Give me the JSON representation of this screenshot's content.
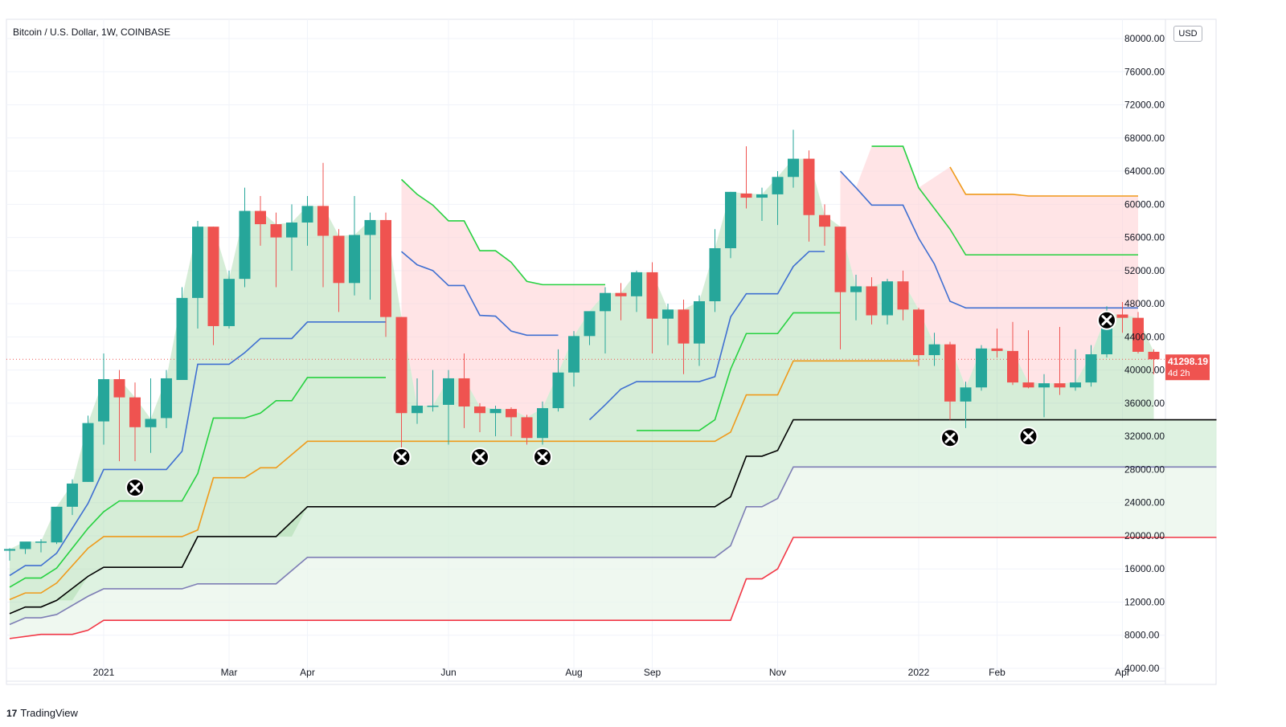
{
  "header": {
    "symbol_title": "Bitcoin / U.S. Dollar, 1W, COINBASE",
    "currency_badge": "USD"
  },
  "footer": {
    "brand": "TradingView",
    "brand_mark": "17"
  },
  "price_label": {
    "value": "41298.19",
    "countdown": "4d 2h"
  },
  "chart_data": {
    "type": "candlestick",
    "title": "Bitcoin / U.S. Dollar, 1W, COINBASE",
    "xlabel": "",
    "ylabel": "",
    "ylim": [
      4000,
      80000
    ],
    "y_ticks": [
      "80000.00",
      "76000.00",
      "72000.00",
      "68000.00",
      "64000.00",
      "60000.00",
      "56000.00",
      "52000.00",
      "48000.00",
      "44000.00",
      "40000.00",
      "36000.00",
      "32000.00",
      "28000.00",
      "24000.00",
      "20000.00",
      "16000.00",
      "12000.00",
      "8000.00",
      "4000.00"
    ],
    "x_ticks": [
      {
        "label": "2021",
        "index": 6
      },
      {
        "label": "Mar",
        "index": 14
      },
      {
        "label": "Apr",
        "index": 19
      },
      {
        "label": "Jun",
        "index": 28
      },
      {
        "label": "Aug",
        "index": 36
      },
      {
        "label": "Sep",
        "index": 41
      },
      {
        "label": "Nov",
        "index": 49
      },
      {
        "label": "2022",
        "index": 58
      },
      {
        "label": "Feb",
        "index": 63
      },
      {
        "label": "Apr",
        "index": 71
      }
    ],
    "current_price": 41298.19,
    "candles": [
      [
        18200,
        18500,
        17000,
        18400
      ],
      [
        18400,
        19000,
        17800,
        19300
      ],
      [
        19200,
        19600,
        18000,
        19300
      ],
      [
        19200,
        23500,
        19000,
        23500
      ],
      [
        23500,
        26800,
        22500,
        26300
      ],
      [
        26500,
        34500,
        26500,
        33600
      ],
      [
        33800,
        42000,
        31000,
        38900
      ],
      [
        38900,
        40000,
        29000,
        36700
      ],
      [
        36700,
        38500,
        29000,
        33100
      ],
      [
        33100,
        39000,
        30000,
        34100
      ],
      [
        34200,
        40000,
        33000,
        39000
      ],
      [
        38800,
        50000,
        39000,
        48700
      ],
      [
        48700,
        58000,
        45000,
        57300
      ],
      [
        57300,
        57300,
        43000,
        45300
      ],
      [
        45300,
        52000,
        45000,
        51000
      ],
      [
        51000,
        62000,
        50000,
        59200
      ],
      [
        59200,
        61000,
        55000,
        57600
      ],
      [
        57600,
        59000,
        50000,
        56000
      ],
      [
        56000,
        60000,
        52000,
        57800
      ],
      [
        57800,
        61000,
        55000,
        59800
      ],
      [
        59800,
        65000,
        50000,
        56200
      ],
      [
        56200,
        57000,
        47000,
        50500
      ],
      [
        50500,
        61000,
        49000,
        56300
      ],
      [
        56300,
        59000,
        48500,
        58100
      ],
      [
        58100,
        59000,
        44000,
        46400
      ],
      [
        46400,
        46400,
        30000,
        34800
      ],
      [
        34800,
        39000,
        33500,
        35700
      ],
      [
        35700,
        40000,
        35000,
        35700
      ],
      [
        35800,
        40000,
        31000,
        39000
      ],
      [
        39000,
        42000,
        33000,
        35600
      ],
      [
        35600,
        36000,
        32500,
        34800
      ],
      [
        34800,
        35700,
        32000,
        35300
      ],
      [
        35300,
        35500,
        32000,
        34300
      ],
      [
        34300,
        34600,
        31000,
        31800
      ],
      [
        31800,
        36200,
        31000,
        35400
      ],
      [
        35400,
        42500,
        35000,
        39700
      ],
      [
        39700,
        44700,
        38000,
        44100
      ],
      [
        44100,
        46600,
        43000,
        47100
      ],
      [
        47100,
        50000,
        42000,
        49300
      ],
      [
        49300,
        50500,
        46000,
        48900
      ],
      [
        48900,
        52000,
        47000,
        51800
      ],
      [
        51800,
        53000,
        42000,
        46200
      ],
      [
        46200,
        48000,
        43000,
        47300
      ],
      [
        47300,
        48500,
        39500,
        43200
      ],
      [
        43200,
        49000,
        40500,
        48300
      ],
      [
        48300,
        57000,
        47000,
        54700
      ],
      [
        54700,
        61500,
        53500,
        61500
      ],
      [
        61300,
        67000,
        59500,
        60800
      ],
      [
        60800,
        62000,
        58000,
        61200
      ],
      [
        61200,
        64000,
        57500,
        63300
      ],
      [
        63300,
        69000,
        62000,
        65500
      ],
      [
        65500,
        66500,
        55500,
        58700
      ],
      [
        58700,
        60000,
        55000,
        57300
      ],
      [
        57300,
        57300,
        42500,
        49400
      ],
      [
        49400,
        51500,
        46000,
        50100
      ],
      [
        50100,
        51200,
        45500,
        46600
      ],
      [
        46600,
        51000,
        45500,
        50700
      ],
      [
        50700,
        52000,
        46000,
        47300
      ],
      [
        47300,
        47500,
        40500,
        41800
      ],
      [
        41800,
        44500,
        40500,
        43100
      ],
      [
        43100,
        43400,
        34000,
        36200
      ],
      [
        36200,
        38600,
        33000,
        37900
      ],
      [
        37900,
        43000,
        37500,
        42600
      ],
      [
        42600,
        45000,
        41500,
        42300
      ],
      [
        42300,
        45800,
        38200,
        38500
      ],
      [
        38500,
        44800,
        37800,
        37900
      ],
      [
        37900,
        39500,
        34300,
        38400
      ],
      [
        38400,
        45200,
        37000,
        37900
      ],
      [
        37900,
        42500,
        37500,
        38500
      ],
      [
        38500,
        43000,
        38000,
        41900
      ],
      [
        41900,
        47700,
        41500,
        46700
      ],
      [
        46700,
        48200,
        44500,
        46300
      ],
      [
        46300,
        47000,
        42000,
        42200
      ],
      [
        42200,
        42500,
        39500,
        41300
      ]
    ],
    "series": [
      {
        "style": "red",
        "points": [
          [
            0,
            7600
          ],
          [
            2,
            8100
          ],
          [
            4,
            8100
          ],
          [
            5,
            8600
          ],
          [
            6,
            9800
          ],
          [
            39,
            9800
          ],
          [
            46,
            9800
          ],
          [
            47,
            14800
          ],
          [
            48,
            14800
          ],
          [
            49,
            16000
          ],
          [
            50,
            19800
          ],
          [
            77,
            19800
          ]
        ]
      },
      {
        "style": "purple",
        "points": [
          [
            0,
            9300
          ],
          [
            1,
            10100
          ],
          [
            2,
            10100
          ],
          [
            3,
            10500
          ],
          [
            5,
            12700
          ],
          [
            6,
            13600
          ],
          [
            11,
            13600
          ],
          [
            12,
            14200
          ],
          [
            17,
            14200
          ],
          [
            19,
            17400
          ],
          [
            45,
            17400
          ],
          [
            46,
            18800
          ],
          [
            47,
            23500
          ],
          [
            48,
            23500
          ],
          [
            49,
            24500
          ],
          [
            50,
            28300
          ],
          [
            77,
            28300
          ]
        ]
      },
      {
        "style": "black",
        "points": [
          [
            0,
            10600
          ],
          [
            1,
            11400
          ],
          [
            2,
            11400
          ],
          [
            3,
            12200
          ],
          [
            5,
            15100
          ],
          [
            6,
            16200
          ],
          [
            11,
            16200
          ],
          [
            12,
            19900
          ],
          [
            17,
            19900
          ],
          [
            19,
            23500
          ],
          [
            45,
            23500
          ],
          [
            46,
            24700
          ],
          [
            47,
            29600
          ],
          [
            48,
            29600
          ],
          [
            49,
            30300
          ],
          [
            50,
            34000
          ],
          [
            77,
            34000
          ]
        ]
      },
      {
        "style": "orange",
        "points": [
          [
            0,
            12300
          ],
          [
            1,
            13100
          ],
          [
            2,
            13100
          ],
          [
            3,
            14300
          ],
          [
            5,
            18500
          ],
          [
            6,
            19900
          ],
          [
            11,
            19900
          ],
          [
            12,
            20700
          ],
          [
            13,
            27000
          ],
          [
            15,
            27000
          ],
          [
            16,
            28200
          ],
          [
            17,
            28200
          ],
          [
            18,
            29800
          ],
          [
            19,
            31400
          ],
          [
            45,
            31400
          ],
          [
            46,
            32500
          ],
          [
            47,
            37000
          ],
          [
            49,
            37000
          ],
          [
            50,
            41100
          ],
          [
            58,
            41100
          ]
        ]
      },
      {
        "style": "orange",
        "points": [
          [
            60,
            64500
          ],
          [
            61,
            61200
          ],
          [
            64,
            61200
          ],
          [
            65,
            61000
          ],
          [
            72,
            61000
          ]
        ]
      },
      {
        "style": "green",
        "points": [
          [
            0,
            13800
          ],
          [
            1,
            14900
          ],
          [
            2,
            14900
          ],
          [
            3,
            16100
          ],
          [
            5,
            20900
          ],
          [
            6,
            22900
          ],
          [
            7,
            24200
          ],
          [
            11,
            24200
          ],
          [
            12,
            27500
          ],
          [
            13,
            34200
          ],
          [
            15,
            34200
          ],
          [
            16,
            34800
          ],
          [
            17,
            36300
          ],
          [
            18,
            36300
          ],
          [
            19,
            39100
          ],
          [
            24,
            39100
          ]
        ]
      },
      {
        "style": "green",
        "points": [
          [
            25,
            63000
          ],
          [
            26,
            61200
          ],
          [
            27,
            59900
          ],
          [
            28,
            58000
          ],
          [
            29,
            58000
          ],
          [
            30,
            54400
          ],
          [
            31,
            54400
          ],
          [
            32,
            53000
          ],
          [
            33,
            50700
          ],
          [
            34,
            50300
          ],
          [
            38,
            50300
          ]
        ]
      },
      {
        "style": "green",
        "points": [
          [
            40,
            32700
          ],
          [
            44,
            32700
          ],
          [
            45,
            34000
          ],
          [
            46,
            40100
          ],
          [
            47,
            44400
          ],
          [
            49,
            44400
          ],
          [
            50,
            46900
          ],
          [
            53,
            46900
          ]
        ]
      },
      {
        "style": "green",
        "points": [
          [
            55,
            67000
          ],
          [
            57,
            67000
          ],
          [
            58,
            62000
          ],
          [
            60,
            57000
          ],
          [
            61,
            53900
          ],
          [
            72,
            53900
          ]
        ]
      },
      {
        "style": "blue",
        "points": [
          [
            0,
            15200
          ],
          [
            1,
            16400
          ],
          [
            2,
            16400
          ],
          [
            3,
            17900
          ],
          [
            5,
            23900
          ],
          [
            6,
            28000
          ],
          [
            10,
            28000
          ],
          [
            11,
            30200
          ],
          [
            12,
            40700
          ],
          [
            14,
            40700
          ],
          [
            15,
            42100
          ],
          [
            16,
            43800
          ],
          [
            18,
            43800
          ],
          [
            19,
            45800
          ],
          [
            24,
            45800
          ]
        ]
      },
      {
        "style": "blue",
        "points": [
          [
            25,
            54300
          ],
          [
            26,
            52700
          ],
          [
            27,
            52000
          ],
          [
            28,
            50200
          ],
          [
            29,
            50200
          ],
          [
            30,
            46600
          ],
          [
            31,
            46500
          ],
          [
            32,
            44700
          ],
          [
            33,
            44200
          ],
          [
            35,
            44200
          ]
        ]
      },
      {
        "style": "blue",
        "points": [
          [
            37,
            34000
          ],
          [
            38,
            35800
          ],
          [
            39,
            37700
          ],
          [
            40,
            38600
          ],
          [
            44,
            38600
          ],
          [
            45,
            39200
          ],
          [
            46,
            46400
          ],
          [
            47,
            49200
          ],
          [
            49,
            49200
          ],
          [
            50,
            52500
          ],
          [
            51,
            54300
          ],
          [
            52,
            54300
          ]
        ]
      },
      {
        "style": "blue",
        "points": [
          [
            53,
            64000
          ],
          [
            54,
            62000
          ],
          [
            55,
            59900
          ],
          [
            57,
            59900
          ],
          [
            58,
            55900
          ],
          [
            59,
            52800
          ],
          [
            60,
            48300
          ],
          [
            61,
            47500
          ],
          [
            72,
            47500
          ]
        ]
      }
    ],
    "red_zones": [
      {
        "from": 25,
        "to": 38,
        "top_points": [
          [
            25,
            63000
          ],
          [
            26,
            61200
          ],
          [
            27,
            59900
          ],
          [
            28,
            58000
          ],
          [
            29,
            58000
          ],
          [
            30,
            54400
          ],
          [
            31,
            54400
          ],
          [
            32,
            53000
          ],
          [
            33,
            50700
          ],
          [
            34,
            50300
          ],
          [
            38,
            50300
          ]
        ]
      },
      {
        "from": 53,
        "to": 72,
        "top_points": [
          [
            53,
            64000
          ],
          [
            54,
            62000
          ],
          [
            55,
            67000
          ],
          [
            57,
            67000
          ],
          [
            58,
            62000
          ],
          [
            60,
            64500
          ],
          [
            61,
            61200
          ],
          [
            72,
            61000
          ]
        ]
      }
    ],
    "markers": [
      {
        "index": 8,
        "price": 25800
      },
      {
        "index": 25,
        "price": 29500
      },
      {
        "index": 30,
        "price": 29500
      },
      {
        "index": 34,
        "price": 29500
      },
      {
        "index": 60,
        "price": 31800
      },
      {
        "index": 65,
        "price": 32000
      },
      {
        "index": 70,
        "price": 46000
      }
    ]
  }
}
